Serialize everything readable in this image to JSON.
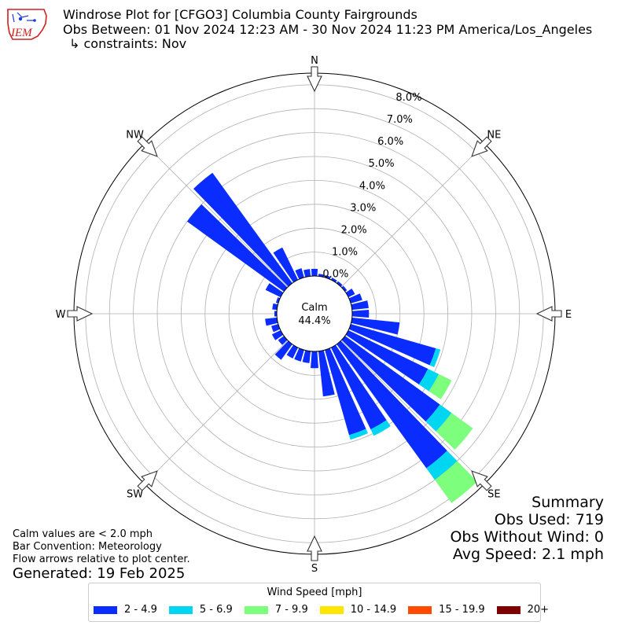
{
  "header": {
    "line1": "Windrose Plot for [CFGO3] Columbia County Fairgrounds",
    "line2": "Obs Between: 01 Nov 2024 12:23 AM - 30 Nov 2024 11:23 PM America/Los_Angeles",
    "line3": "↳ constraints: Nov",
    "logo_text": "IEM"
  },
  "chart_data": {
    "type": "windrose",
    "title": "Windrose Plot for [CFGO3] Columbia County Fairgrounds",
    "units": "%",
    "rmin": 0,
    "rmax": 8,
    "ring_labels": [
      "0.0%",
      "1.0%",
      "2.0%",
      "3.0%",
      "4.0%",
      "5.0%",
      "6.0%",
      "7.0%",
      "8.0%"
    ],
    "compass": [
      "N",
      "NE",
      "E",
      "SE",
      "S",
      "SW",
      "W",
      "NW"
    ],
    "calm_label": "Calm",
    "calm_value": "44.4%",
    "speed_bins": [
      {
        "label": "2 - 4.9",
        "color": "#0a2cff"
      },
      {
        "label": "5 - 6.9",
        "color": "#00d5f2"
      },
      {
        "label": "7 - 9.9",
        "color": "#7dff7d"
      },
      {
        "label": "10 - 14.9",
        "color": "#ffe600"
      },
      {
        "label": "15 - 19.9",
        "color": "#ff4a00"
      },
      {
        "label": "20+",
        "color": "#7f0000"
      }
    ],
    "directions": [
      0,
      10,
      20,
      30,
      40,
      50,
      60,
      70,
      80,
      90,
      100,
      110,
      120,
      130,
      140,
      150,
      160,
      170,
      180,
      190,
      200,
      210,
      220,
      230,
      240,
      250,
      260,
      270,
      280,
      290,
      300,
      310,
      320,
      330,
      340,
      350
    ],
    "values": [
      [
        0.3,
        0,
        0,
        0,
        0,
        0
      ],
      [
        0.1,
        0,
        0,
        0,
        0,
        0
      ],
      [
        0.1,
        0,
        0,
        0,
        0,
        0
      ],
      [
        0.1,
        0,
        0,
        0,
        0,
        0
      ],
      [
        0.1,
        0,
        0,
        0,
        0,
        0
      ],
      [
        0.1,
        0,
        0,
        0,
        0,
        0
      ],
      [
        0.3,
        0,
        0,
        0,
        0,
        0
      ],
      [
        0.5,
        0,
        0,
        0,
        0,
        0
      ],
      [
        0.7,
        0,
        0,
        0,
        0,
        0
      ],
      [
        0.7,
        0,
        0,
        0,
        0,
        0
      ],
      [
        2.0,
        0,
        0,
        0,
        0,
        0
      ],
      [
        3.7,
        0.2,
        0,
        0,
        0,
        0
      ],
      [
        3.7,
        0.5,
        0.6,
        0,
        0,
        0
      ],
      [
        4.9,
        0.6,
        1.1,
        0,
        0,
        0
      ],
      [
        6.4,
        0.6,
        1.2,
        0,
        0,
        0
      ],
      [
        3.8,
        0.3,
        0,
        0,
        0,
        0
      ],
      [
        3.7,
        0.2,
        0,
        0,
        0,
        0
      ],
      [
        1.9,
        0,
        0,
        0,
        0,
        0
      ],
      [
        0.7,
        0,
        0,
        0,
        0,
        0
      ],
      [
        0.5,
        0,
        0,
        0,
        0,
        0
      ],
      [
        0.5,
        0,
        0,
        0,
        0,
        0
      ],
      [
        0.5,
        0,
        0,
        0,
        0,
        0
      ],
      [
        0.8,
        0,
        0,
        0,
        0,
        0
      ],
      [
        0.3,
        0,
        0,
        0,
        0,
        0
      ],
      [
        0.4,
        0,
        0,
        0,
        0,
        0
      ],
      [
        0.3,
        0,
        0,
        0,
        0,
        0
      ],
      [
        0.5,
        0,
        0,
        0,
        0,
        0
      ],
      [
        0.1,
        0,
        0,
        0,
        0,
        0
      ],
      [
        0.2,
        0,
        0,
        0,
        0,
        0
      ],
      [
        0.1,
        0,
        0,
        0,
        0,
        0
      ],
      [
        0.7,
        0,
        0,
        0,
        0,
        0
      ],
      [
        5.0,
        0,
        0,
        0,
        0,
        0
      ],
      [
        5.7,
        0,
        0,
        0,
        0,
        0
      ],
      [
        1.5,
        0,
        0,
        0,
        0,
        0
      ],
      [
        0.4,
        0,
        0,
        0,
        0,
        0
      ],
      [
        0.3,
        0,
        0,
        0,
        0,
        0
      ]
    ],
    "grid": true
  },
  "notes": {
    "line1": "Calm values are < 2.0 mph",
    "line2": "Bar Convention: Meteorology",
    "line3": "Flow arrows relative to plot center.",
    "generated": "Generated: 19 Feb 2025"
  },
  "summary": {
    "title": "Summary",
    "obs_used": "Obs Used: 719",
    "obs_without_wind": "Obs Without Wind: 0",
    "avg_speed": "Avg Speed: 2.1 mph"
  },
  "legend": {
    "title": "Wind Speed [mph]"
  }
}
